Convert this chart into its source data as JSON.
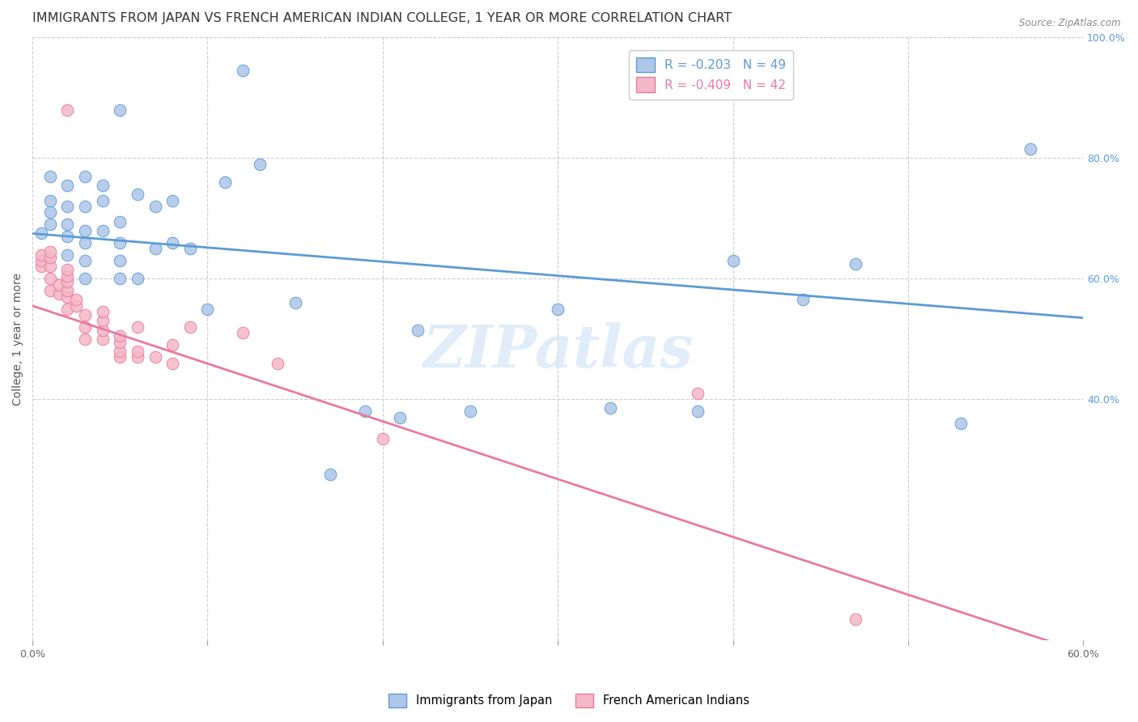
{
  "title": "IMMIGRANTS FROM JAPAN VS FRENCH AMERICAN INDIAN COLLEGE, 1 YEAR OR MORE CORRELATION CHART",
  "source": "Source: ZipAtlas.com",
  "ylabel": "College, 1 year or more",
  "xmin": 0.0,
  "xmax": 0.6,
  "ymin": 0.0,
  "ymax": 1.0,
  "xtick_positions": [
    0.0,
    0.1,
    0.2,
    0.3,
    0.4,
    0.5,
    0.6
  ],
  "xtick_labels": [
    "0.0%",
    "",
    "",
    "",
    "",
    "",
    "60.0%"
  ],
  "yticks_right": [
    0.4,
    0.6,
    0.8,
    1.0
  ],
  "ytick_labels_right": [
    "40.0%",
    "60.0%",
    "80.0%",
    "100.0%"
  ],
  "blue_R": "-0.203",
  "blue_N": "49",
  "pink_R": "-0.409",
  "pink_N": "42",
  "blue_color": "#aec6e8",
  "pink_color": "#f5b8c8",
  "blue_line_color": "#5b9bd5",
  "pink_line_color": "#e87a9f",
  "legend_blue_label": "Immigrants from Japan",
  "legend_pink_label": "French American Indians",
  "watermark": "ZIPatlas",
  "blue_scatter_x": [
    0.005,
    0.01,
    0.01,
    0.01,
    0.01,
    0.02,
    0.02,
    0.02,
    0.02,
    0.02,
    0.03,
    0.03,
    0.03,
    0.03,
    0.03,
    0.03,
    0.04,
    0.04,
    0.04,
    0.05,
    0.05,
    0.05,
    0.05,
    0.05,
    0.06,
    0.06,
    0.07,
    0.07,
    0.08,
    0.08,
    0.09,
    0.1,
    0.11,
    0.12,
    0.13,
    0.15,
    0.17,
    0.19,
    0.21,
    0.22,
    0.25,
    0.3,
    0.33,
    0.38,
    0.4,
    0.44,
    0.47,
    0.53,
    0.57
  ],
  "blue_scatter_y": [
    0.675,
    0.69,
    0.71,
    0.73,
    0.77,
    0.64,
    0.67,
    0.69,
    0.72,
    0.755,
    0.6,
    0.63,
    0.66,
    0.68,
    0.72,
    0.77,
    0.68,
    0.73,
    0.755,
    0.6,
    0.63,
    0.66,
    0.695,
    0.88,
    0.6,
    0.74,
    0.65,
    0.72,
    0.66,
    0.73,
    0.65,
    0.55,
    0.76,
    0.945,
    0.79,
    0.56,
    0.275,
    0.38,
    0.37,
    0.515,
    0.38,
    0.55,
    0.385,
    0.38,
    0.63,
    0.565,
    0.625,
    0.36,
    0.815
  ],
  "pink_scatter_x": [
    0.005,
    0.005,
    0.005,
    0.01,
    0.01,
    0.01,
    0.01,
    0.01,
    0.015,
    0.015,
    0.02,
    0.02,
    0.02,
    0.02,
    0.02,
    0.02,
    0.02,
    0.025,
    0.025,
    0.03,
    0.03,
    0.03,
    0.04,
    0.04,
    0.04,
    0.04,
    0.05,
    0.05,
    0.05,
    0.05,
    0.06,
    0.06,
    0.06,
    0.07,
    0.08,
    0.08,
    0.09,
    0.12,
    0.14,
    0.2,
    0.38,
    0.47
  ],
  "pink_scatter_y": [
    0.62,
    0.63,
    0.64,
    0.58,
    0.6,
    0.62,
    0.635,
    0.645,
    0.575,
    0.59,
    0.55,
    0.57,
    0.58,
    0.595,
    0.605,
    0.615,
    0.88,
    0.555,
    0.565,
    0.5,
    0.52,
    0.54,
    0.5,
    0.515,
    0.53,
    0.545,
    0.47,
    0.48,
    0.495,
    0.505,
    0.47,
    0.48,
    0.52,
    0.47,
    0.46,
    0.49,
    0.52,
    0.51,
    0.46,
    0.335,
    0.41,
    0.035
  ],
  "blue_line_x": [
    0.0,
    0.6
  ],
  "blue_line_y": [
    0.675,
    0.535
  ],
  "pink_line_x": [
    0.0,
    0.6
  ],
  "pink_line_y": [
    0.555,
    -0.02
  ],
  "background_color": "#ffffff",
  "grid_color": "#cccccc",
  "title_color": "#333333",
  "title_fontsize": 11.5,
  "axis_label_fontsize": 10,
  "tick_fontsize": 9
}
